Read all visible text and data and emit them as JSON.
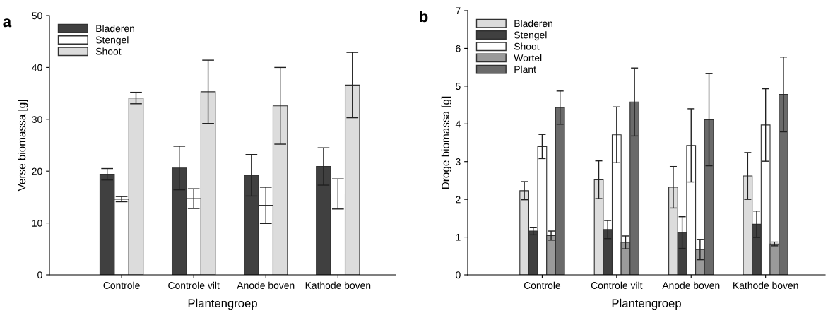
{
  "chart_data": [
    {
      "type": "bar",
      "title": "a",
      "xlabel": "Plantengroep",
      "ylabel": "Verse biomassa [g]",
      "categories": [
        "Controle",
        "Controle vilt",
        "Anode boven",
        "Kathode boven"
      ],
      "ylim": [
        0,
        50
      ],
      "yticks": [
        0,
        10,
        20,
        30,
        40,
        50
      ],
      "grid": false,
      "legend": "top left",
      "series": [
        {
          "name": "Bladeren",
          "color": "#404040",
          "values": [
            19.4,
            20.6,
            19.2,
            20.9
          ],
          "errors": [
            1.1,
            4.2,
            4.0,
            3.6
          ]
        },
        {
          "name": "Stengel",
          "color": "#ffffff",
          "values": [
            14.6,
            14.7,
            13.4,
            15.6
          ],
          "errors": [
            0.5,
            1.9,
            3.5,
            2.9
          ]
        },
        {
          "name": "Shoot",
          "color": "#dcdcdc",
          "values": [
            34.1,
            35.3,
            32.6,
            36.6
          ],
          "errors": [
            1.1,
            6.1,
            7.4,
            6.3
          ]
        }
      ]
    },
    {
      "type": "bar",
      "title": "b",
      "xlabel": "Plantengroep",
      "ylabel": "Droge biomassa [g]",
      "categories": [
        "Controle",
        "Controle vilt",
        "Anode boven",
        "Kathode boven"
      ],
      "ylim": [
        0,
        7
      ],
      "yticks": [
        0,
        1,
        2,
        3,
        4,
        5,
        6,
        7
      ],
      "grid": false,
      "legend": "top left",
      "series": [
        {
          "name": "Bladeren",
          "color": "#dcdcdc",
          "values": [
            2.23,
            2.52,
            2.32,
            2.62
          ],
          "errors": [
            0.24,
            0.5,
            0.55,
            0.62
          ]
        },
        {
          "name": "Stengel",
          "color": "#404040",
          "values": [
            1.16,
            1.2,
            1.12,
            1.34
          ],
          "errors": [
            0.1,
            0.24,
            0.42,
            0.35
          ]
        },
        {
          "name": "Shoot",
          "color": "#ffffff",
          "values": [
            3.4,
            3.71,
            3.43,
            3.97
          ],
          "errors": [
            0.32,
            0.74,
            0.97,
            0.96
          ]
        },
        {
          "name": "Wortel",
          "color": "#9a9a9a",
          "values": [
            1.04,
            0.86,
            0.67,
            0.82
          ],
          "errors": [
            0.12,
            0.17,
            0.27,
            0.05
          ]
        },
        {
          "name": "Plant",
          "color": "#6a6a6a",
          "values": [
            4.43,
            4.58,
            4.11,
            4.78
          ],
          "errors": [
            0.44,
            0.9,
            1.22,
            0.99
          ]
        }
      ]
    }
  ]
}
